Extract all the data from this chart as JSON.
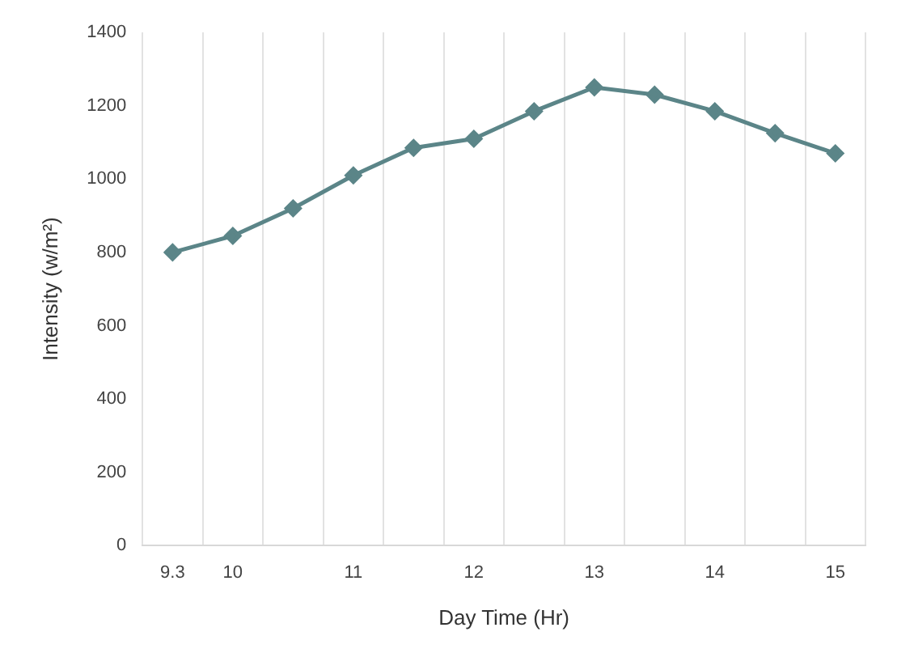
{
  "chart_data": {
    "type": "line",
    "xlabel": "Day Time (Hr)",
    "ylabel": "Intensity (w/m²)",
    "categories": [
      "9.3",
      "10",
      null,
      "11",
      null,
      "12",
      null,
      "13",
      null,
      "14",
      null,
      "15"
    ],
    "series": [
      {
        "color": "#5b8588",
        "values": [
          800,
          845,
          920,
          1010,
          1085,
          1110,
          1185,
          1250,
          1230,
          1185,
          1125,
          1070
        ]
      }
    ],
    "ylim": [
      0,
      1400
    ],
    "yticks": [
      0,
      200,
      400,
      600,
      800,
      1000,
      1200,
      1400
    ],
    "grid": "x",
    "marker": "diamond",
    "line_style": "solid",
    "legend": false
  }
}
